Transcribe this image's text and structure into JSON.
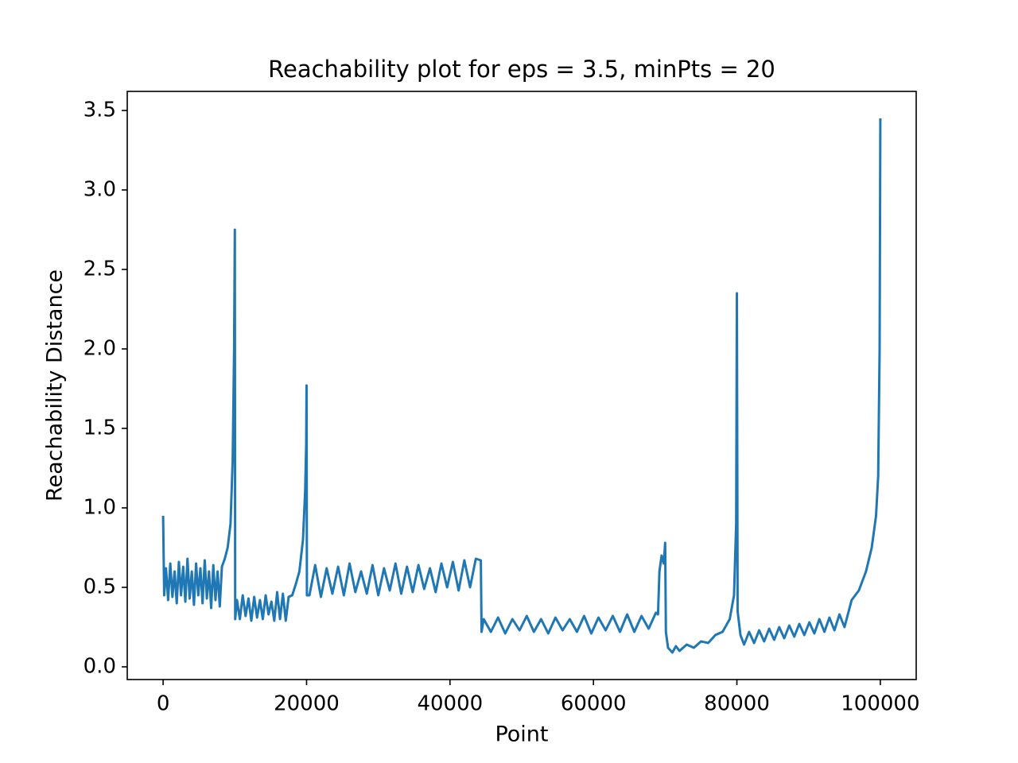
{
  "chart_data": {
    "type": "line",
    "title": "Reachability plot for eps = 3.5, minPts = 20",
    "xlabel": "Point",
    "ylabel": "Reachability Distance",
    "color": "#1f77b4",
    "x": [
      0,
      150,
      400,
      700,
      1000,
      1300,
      1600,
      1900,
      2200,
      2500,
      2800,
      3100,
      3400,
      3700,
      4000,
      4300,
      4600,
      4900,
      5200,
      5500,
      5800,
      6100,
      6400,
      6700,
      7000,
      7300,
      7600,
      7900,
      8200,
      8600,
      9000,
      9400,
      9700,
      9900,
      10000,
      10050,
      10300,
      10700,
      11100,
      11500,
      11900,
      12300,
      12700,
      13100,
      13500,
      13900,
      14300,
      14700,
      15100,
      15500,
      15900,
      16300,
      16700,
      17100,
      17500,
      18000,
      18500,
      19000,
      19500,
      19800,
      19950,
      20000,
      20050,
      20400,
      21200,
      22000,
      22800,
      23600,
      24400,
      25200,
      26000,
      26800,
      27600,
      28400,
      29200,
      30000,
      30800,
      31600,
      32400,
      33200,
      34000,
      34800,
      35600,
      36400,
      37200,
      38000,
      38800,
      39600,
      40400,
      41200,
      42000,
      42800,
      43600,
      44300,
      44400,
      44700,
      45700,
      46700,
      47700,
      48700,
      49700,
      50700,
      51700,
      52700,
      53700,
      54700,
      55700,
      56700,
      57700,
      58700,
      59700,
      60700,
      61700,
      62700,
      63700,
      64700,
      65700,
      66700,
      67700,
      68700,
      69000,
      69200,
      69500,
      69800,
      70000,
      70100,
      70400,
      71000,
      71500,
      72000,
      73000,
      74000,
      75000,
      76000,
      77000,
      78000,
      79000,
      79600,
      79900,
      80000,
      80100,
      80500,
      81000,
      81700,
      82400,
      83100,
      83800,
      84500,
      85200,
      85900,
      86600,
      87300,
      88000,
      88700,
      89400,
      90100,
      90800,
      91500,
      92200,
      92900,
      93600,
      94300,
      95000,
      96000,
      97000,
      98000,
      98800,
      99400,
      99700,
      99900,
      100000
    ],
    "values": [
      0.95,
      0.45,
      0.62,
      0.42,
      0.65,
      0.44,
      0.6,
      0.4,
      0.66,
      0.45,
      0.63,
      0.41,
      0.68,
      0.43,
      0.6,
      0.39,
      0.65,
      0.45,
      0.62,
      0.4,
      0.67,
      0.43,
      0.6,
      0.37,
      0.64,
      0.42,
      0.6,
      0.38,
      0.63,
      0.68,
      0.75,
      0.9,
      1.3,
      2.0,
      2.75,
      0.3,
      0.42,
      0.3,
      0.45,
      0.32,
      0.43,
      0.29,
      0.44,
      0.31,
      0.42,
      0.3,
      0.45,
      0.33,
      0.41,
      0.29,
      0.47,
      0.3,
      0.46,
      0.29,
      0.44,
      0.45,
      0.52,
      0.6,
      0.8,
      1.1,
      1.4,
      1.77,
      0.45,
      0.45,
      0.64,
      0.44,
      0.62,
      0.46,
      0.63,
      0.45,
      0.65,
      0.47,
      0.6,
      0.46,
      0.64,
      0.45,
      0.62,
      0.48,
      0.65,
      0.46,
      0.63,
      0.47,
      0.64,
      0.49,
      0.62,
      0.47,
      0.65,
      0.5,
      0.66,
      0.48,
      0.67,
      0.5,
      0.68,
      0.67,
      0.22,
      0.3,
      0.22,
      0.31,
      0.21,
      0.3,
      0.23,
      0.32,
      0.22,
      0.3,
      0.21,
      0.31,
      0.23,
      0.3,
      0.22,
      0.32,
      0.21,
      0.31,
      0.23,
      0.32,
      0.22,
      0.33,
      0.22,
      0.32,
      0.24,
      0.34,
      0.33,
      0.6,
      0.7,
      0.65,
      0.78,
      0.22,
      0.12,
      0.09,
      0.13,
      0.1,
      0.14,
      0.12,
      0.16,
      0.15,
      0.2,
      0.22,
      0.3,
      0.45,
      0.9,
      2.35,
      0.35,
      0.2,
      0.14,
      0.22,
      0.15,
      0.23,
      0.16,
      0.24,
      0.17,
      0.25,
      0.18,
      0.26,
      0.19,
      0.27,
      0.2,
      0.28,
      0.21,
      0.3,
      0.22,
      0.31,
      0.23,
      0.33,
      0.25,
      0.42,
      0.48,
      0.6,
      0.75,
      0.95,
      1.2,
      2.0,
      3.45
    ],
    "xlim": [
      -5000,
      105000
    ],
    "xticks": [
      0,
      20000,
      40000,
      60000,
      80000,
      100000
    ],
    "ylim": [
      -0.08,
      3.62
    ],
    "yticks": [
      {
        "value": 0,
        "label": "0.0"
      },
      0.5,
      {
        "value": 1,
        "label": "1.0"
      },
      1.5,
      {
        "value": 2,
        "label": "2.0"
      },
      2.5,
      {
        "value": 3,
        "label": "3.0"
      },
      3.5
    ],
    "grid": false
  }
}
